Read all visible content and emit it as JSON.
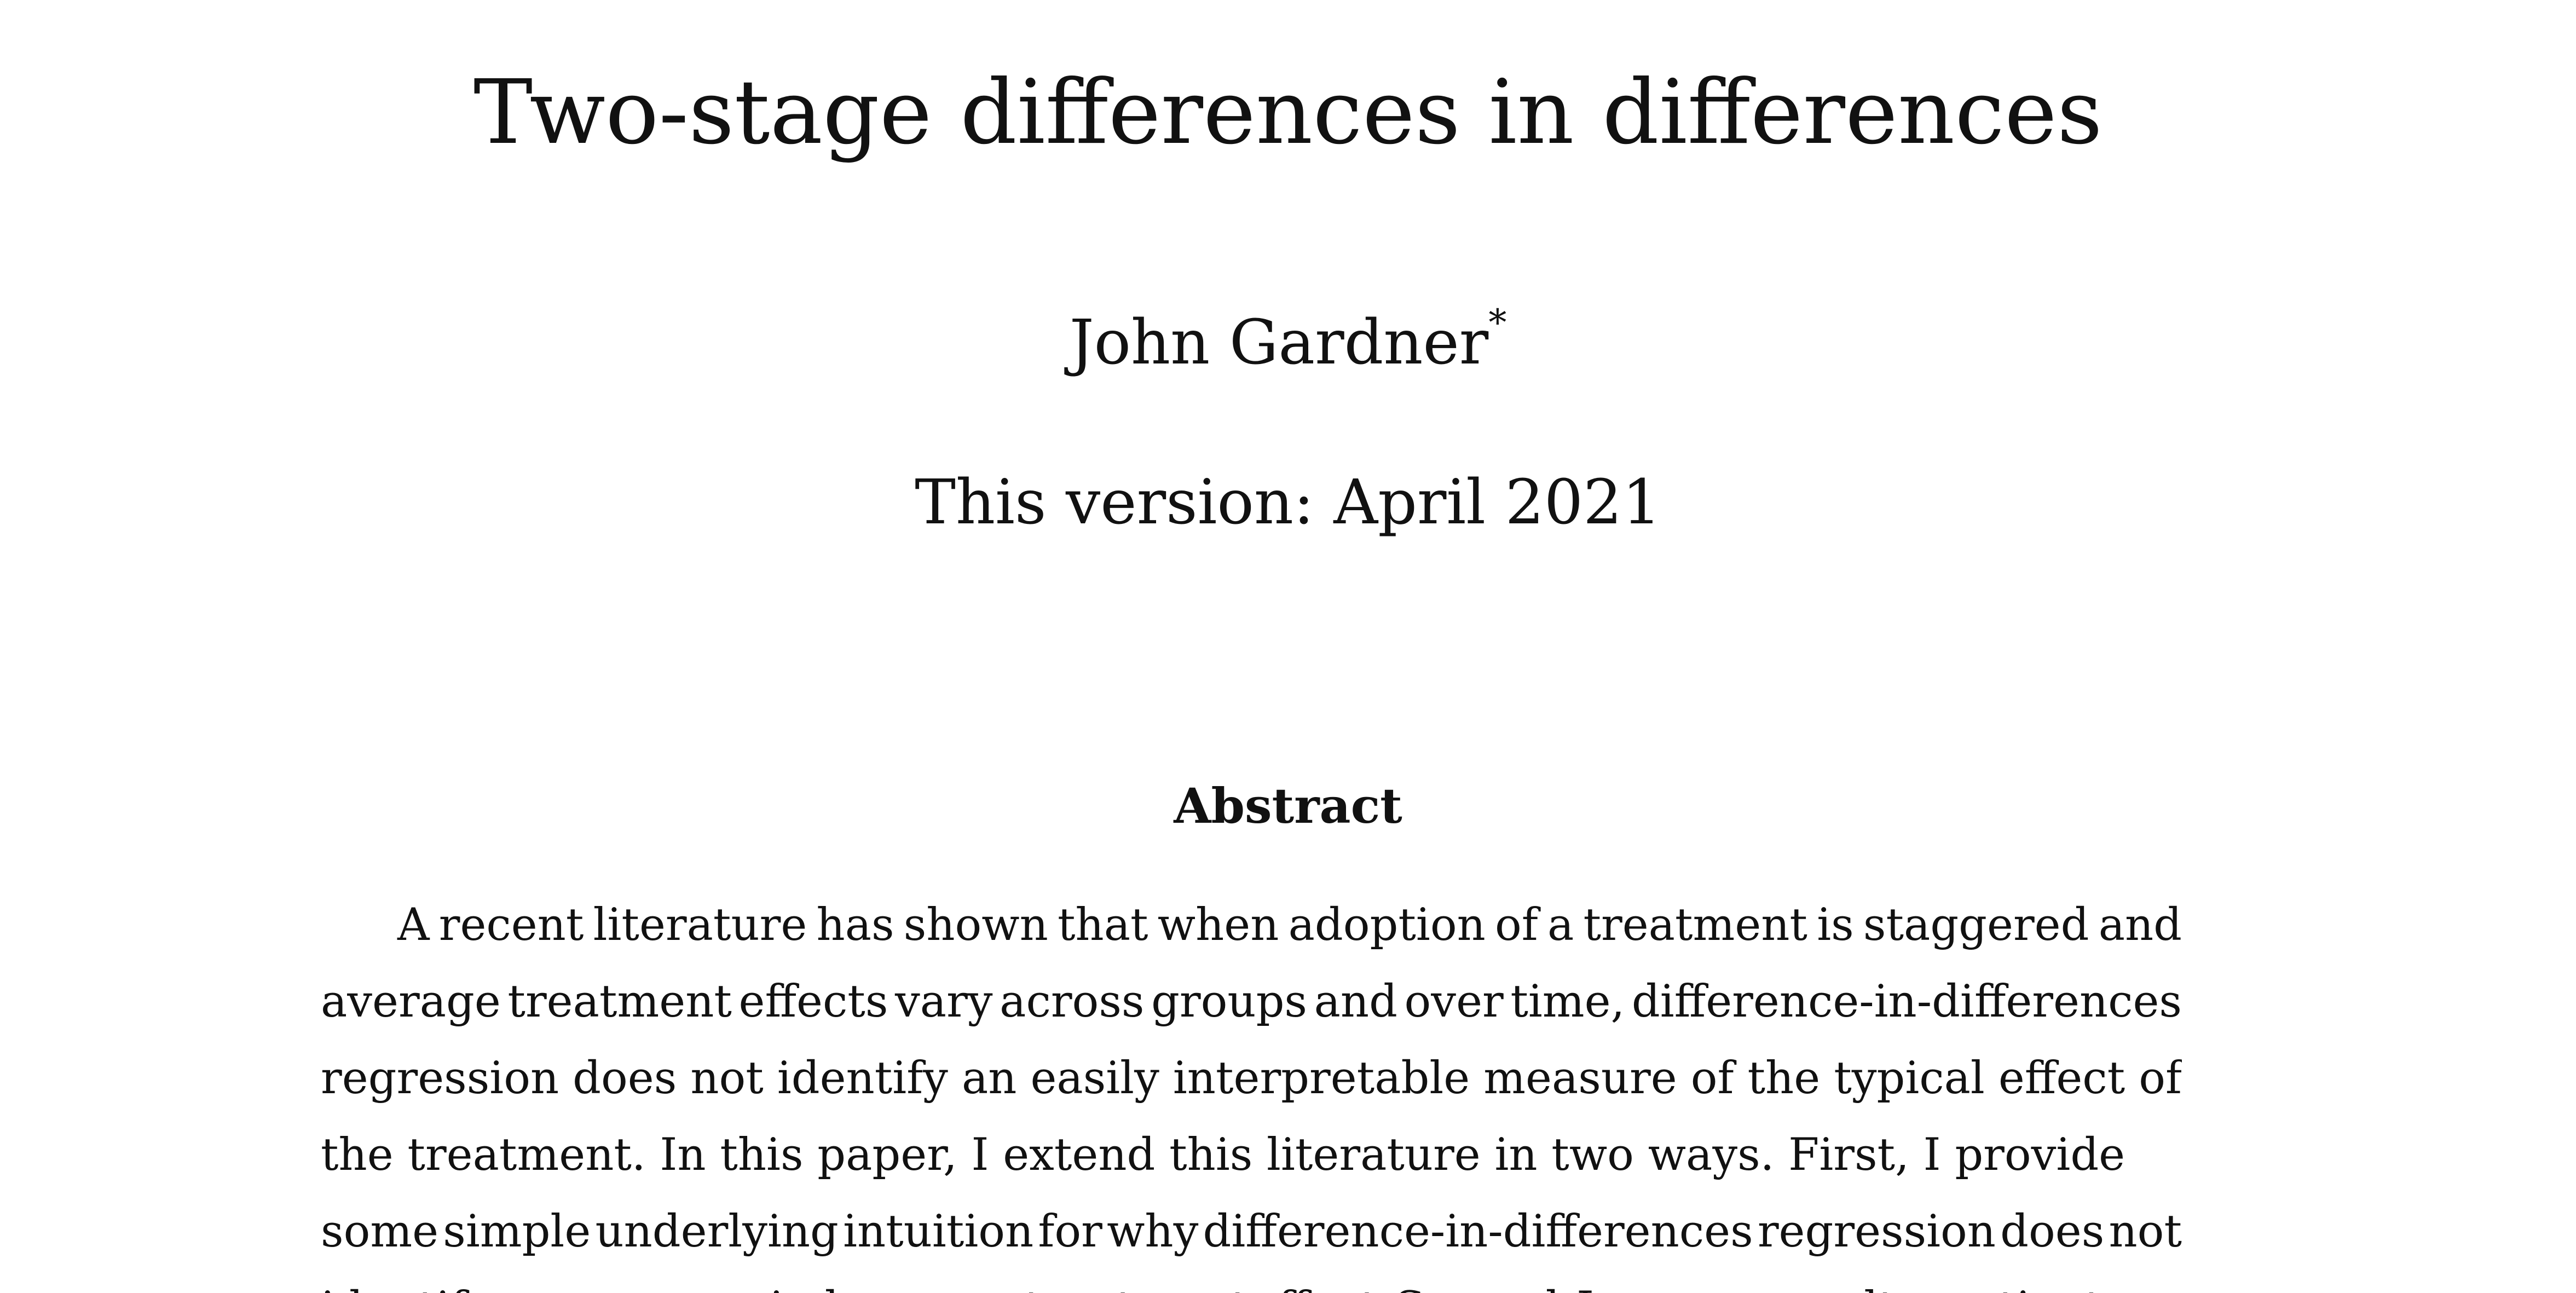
{
  "paper": {
    "title": "Two-stage differences in differences",
    "author": "John Gardner",
    "author_footnote_mark": "*",
    "version": "This version: April 2021",
    "abstract_heading": "Abstract",
    "abstract_lines": [
      "A recent literature has shown that when adoption of a treatment is staggered and",
      "average treatment effects vary across groups and over time, difference-in-differences",
      "regression does not identify an easily interpretable measure of the typical effect of",
      "the treatment. In this paper, I extend this literature in two ways. First, I provide",
      "some simple underlying intuition for why difference-in-differences regression does not",
      "identify a group×period average treatment effect. Second, I propose an alternative two-"
    ]
  }
}
